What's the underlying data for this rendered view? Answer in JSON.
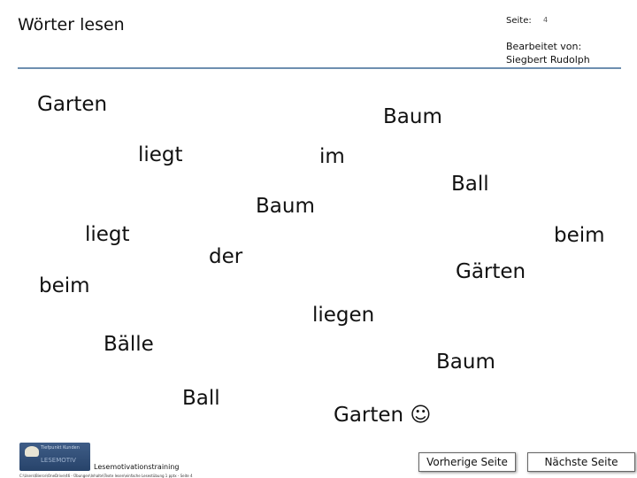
{
  "header": {
    "title": "Wörter lesen",
    "page_label": "Seite:",
    "page_number": "4",
    "edited_by_label": "Bearbeitet von:",
    "edited_by_name": "Siegbert Rudolph"
  },
  "words": [
    "Garten",
    "Baum",
    "liegt",
    "im",
    "Ball",
    "Baum",
    "liegt",
    "beim",
    "der",
    "Gärten",
    "beim",
    "liegen",
    "Bälle",
    "Baum",
    "Ball",
    "Garten ☺"
  ],
  "footer": {
    "logo_text": "Tiefpunkt Kunden",
    "logo_subtext": "LESEMOTIV",
    "label": "Lesemotivationstraining",
    "path": "C:\\Users\\Bierce\\OneDrive\\46 - Übungen\\Inhalte\\Texte lesen\\einfache Lesestübung 1 pptx - Seite 4",
    "prev_button": "Vorherige Seite",
    "next_button": "Nächste Seite"
  }
}
